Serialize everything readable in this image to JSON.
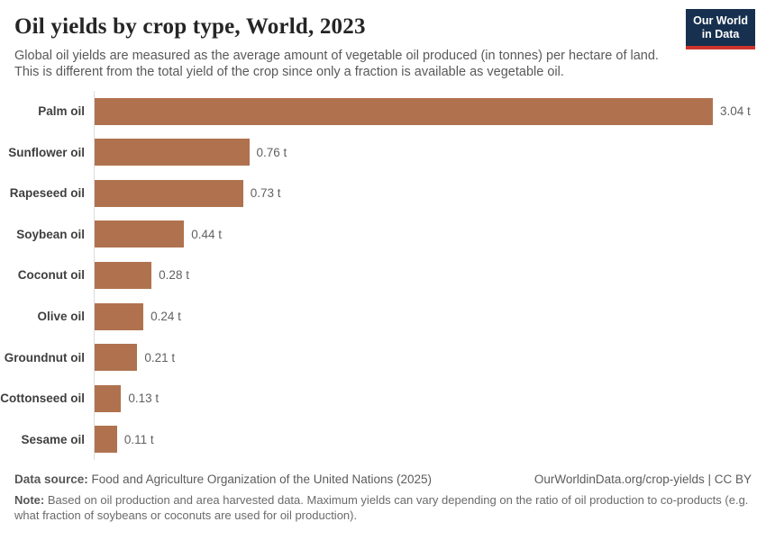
{
  "header": {
    "title": "Oil yields by crop type, World, 2023",
    "subtitle": "Global oil yields are measured as the average amount of vegetable oil produced (in tonnes) per hectare of land. This is different from the total yield of the crop since only a fraction is available as vegetable oil.",
    "logo": {
      "line1": "Our World",
      "line2": "in Data",
      "background_color": "#17304f",
      "accent_color": "#cf342c",
      "text_color": "#ffffff"
    }
  },
  "chart_data": {
    "type": "bar",
    "orientation": "horizontal",
    "title": "Oil yields by crop type, World, 2023",
    "categories": [
      "Palm oil",
      "Sunflower oil",
      "Rapeseed oil",
      "Soybean oil",
      "Coconut oil",
      "Olive oil",
      "Groundnut oil",
      "Cottonseed oil",
      "Sesame oil"
    ],
    "values": [
      3.04,
      0.76,
      0.73,
      0.44,
      0.28,
      0.24,
      0.21,
      0.13,
      0.11
    ],
    "value_labels": [
      "3.04 t",
      "0.76 t",
      "0.73 t",
      "0.44 t",
      "0.28 t",
      "0.24 t",
      "0.21 t",
      "0.13 t",
      "0.11 t"
    ],
    "unit": "tonnes per hectare",
    "xlim": [
      0,
      3.04
    ],
    "grid": false,
    "legend": "none",
    "bar_color": "#b0724e",
    "axis_color": "#dcdcdc"
  },
  "footer": {
    "source_label": "Data source:",
    "source_text": "Food and Agriculture Organization of the United Nations (2025)",
    "rights_text": "OurWorldinData.org/crop-yields | CC BY",
    "note_label": "Note:",
    "note_text": "Based on oil production and area harvested data. Maximum yields can vary depending on the ratio of oil production to co-products (e.g. what fraction of soybeans or coconuts are used for oil production)."
  }
}
